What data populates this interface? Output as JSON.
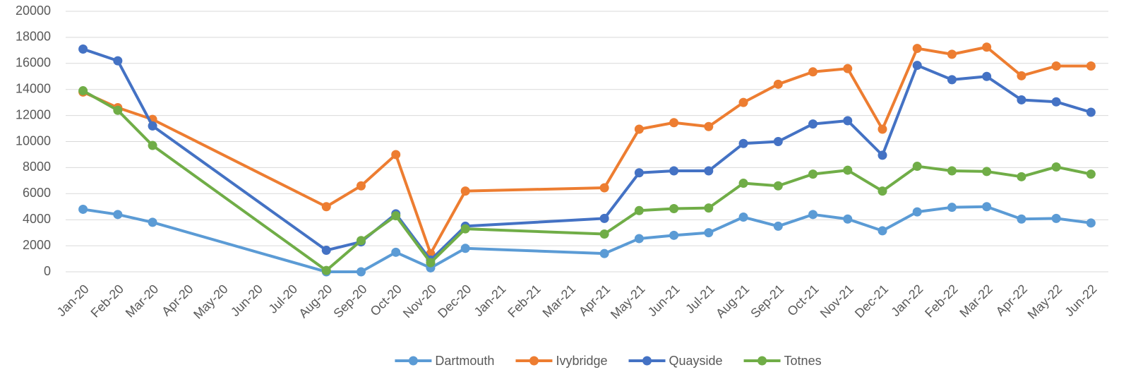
{
  "chart_data": {
    "type": "line",
    "categories": [
      "Jan-20",
      "Feb-20",
      "Mar-20",
      "Apr-20",
      "May-20",
      "Jun-20",
      "Jul-20",
      "Aug-20",
      "Sep-20",
      "Oct-20",
      "Nov-20",
      "Dec-20",
      "Jan-21",
      "Feb-21",
      "Mar-21",
      "Apr-21",
      "May-21",
      "Jun-21",
      "Jul-21",
      "Aug-21",
      "Sep-21",
      "Oct-21",
      "Nov-21",
      "Dec-21",
      "Jan-22",
      "Feb-22",
      "Mar-22",
      "Apr-22",
      "May-22",
      "Jun-22"
    ],
    "series": [
      {
        "name": "Dartmouth",
        "color": "#5b9bd5",
        "values": [
          4800,
          4400,
          3800,
          null,
          null,
          null,
          null,
          0,
          0,
          1500,
          300,
          1800,
          null,
          null,
          null,
          1400,
          2550,
          2800,
          3000,
          4200,
          3500,
          4400,
          4050,
          3150,
          4600,
          4950,
          5000,
          4050,
          4100,
          3750
        ]
      },
      {
        "name": "Ivybridge",
        "color": "#ed7d31",
        "values": [
          13800,
          12600,
          11700,
          null,
          null,
          null,
          null,
          5000,
          6600,
          9000,
          1400,
          6200,
          null,
          null,
          null,
          6450,
          10950,
          11450,
          11150,
          13000,
          14400,
          15350,
          15600,
          10950,
          17150,
          16700,
          17250,
          15050,
          15800,
          15800
        ]
      },
      {
        "name": "Quayside",
        "color": "#4472c4",
        "values": [
          17100,
          16200,
          11200,
          null,
          null,
          null,
          null,
          1650,
          2300,
          4450,
          900,
          3500,
          null,
          null,
          null,
          4100,
          7600,
          7750,
          7750,
          9850,
          10000,
          11350,
          11600,
          8950,
          15850,
          14750,
          15000,
          13200,
          13050,
          12250
        ]
      },
      {
        "name": "Totnes",
        "color": "#70ad47",
        "values": [
          13900,
          12400,
          9700,
          null,
          null,
          null,
          null,
          100,
          2400,
          4300,
          700,
          3300,
          null,
          null,
          null,
          2900,
          4700,
          4850,
          4900,
          6800,
          6600,
          7500,
          7800,
          6200,
          8100,
          7750,
          7700,
          7300,
          8050,
          7500
        ]
      }
    ],
    "ylim": [
      0,
      20000
    ],
    "yticks": [
      0,
      2000,
      4000,
      6000,
      8000,
      10000,
      12000,
      14000,
      16000,
      18000,
      20000
    ],
    "grid": true,
    "legend": "bottom",
    "connect_gaps": true
  }
}
